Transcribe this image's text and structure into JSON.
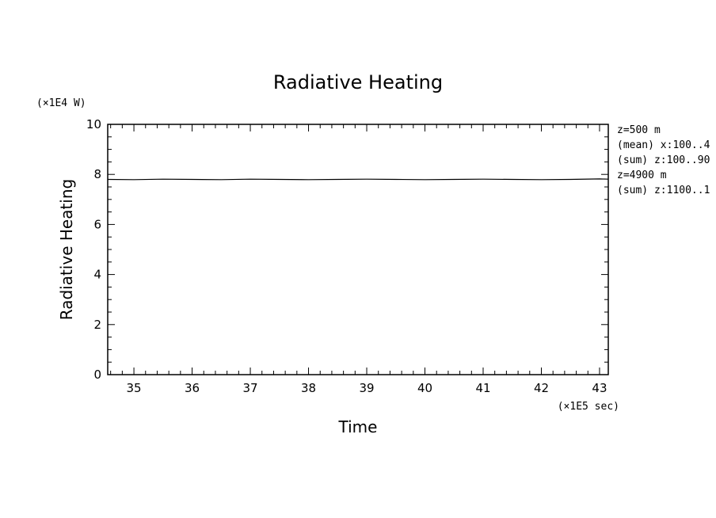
{
  "chart_data": {
    "type": "line",
    "title": "Radiative Heating",
    "xlabel": "Time",
    "ylabel": "Radiative Heating",
    "x_unit": "(×1E5 sec)",
    "y_unit": "(×1E4 W)",
    "xlim": [
      34.55,
      43.15
    ],
    "ylim": [
      0,
      10
    ],
    "xticks": [
      35,
      36,
      37,
      38,
      39,
      40,
      41,
      42,
      43
    ],
    "yticks": [
      0,
      2,
      4,
      6,
      8,
      10
    ],
    "grid": false,
    "side_text": [
      "z=500 m",
      "(mean) x:100..4",
      "(sum) z:100..90",
      "z=4900 m",
      "(sum) z:1100..1"
    ],
    "series": [
      {
        "color": "#000000",
        "x": [
          34.55,
          35.0,
          35.5,
          36.0,
          36.5,
          37.0,
          37.5,
          38.0,
          38.5,
          39.0,
          39.5,
          40.0,
          40.5,
          41.0,
          41.5,
          42.0,
          42.5,
          43.0,
          43.15
        ],
        "values": [
          7.8,
          7.79,
          7.81,
          7.8,
          7.79,
          7.81,
          7.8,
          7.79,
          7.8,
          7.81,
          7.8,
          7.79,
          7.8,
          7.81,
          7.8,
          7.79,
          7.8,
          7.82,
          7.81
        ]
      }
    ]
  }
}
